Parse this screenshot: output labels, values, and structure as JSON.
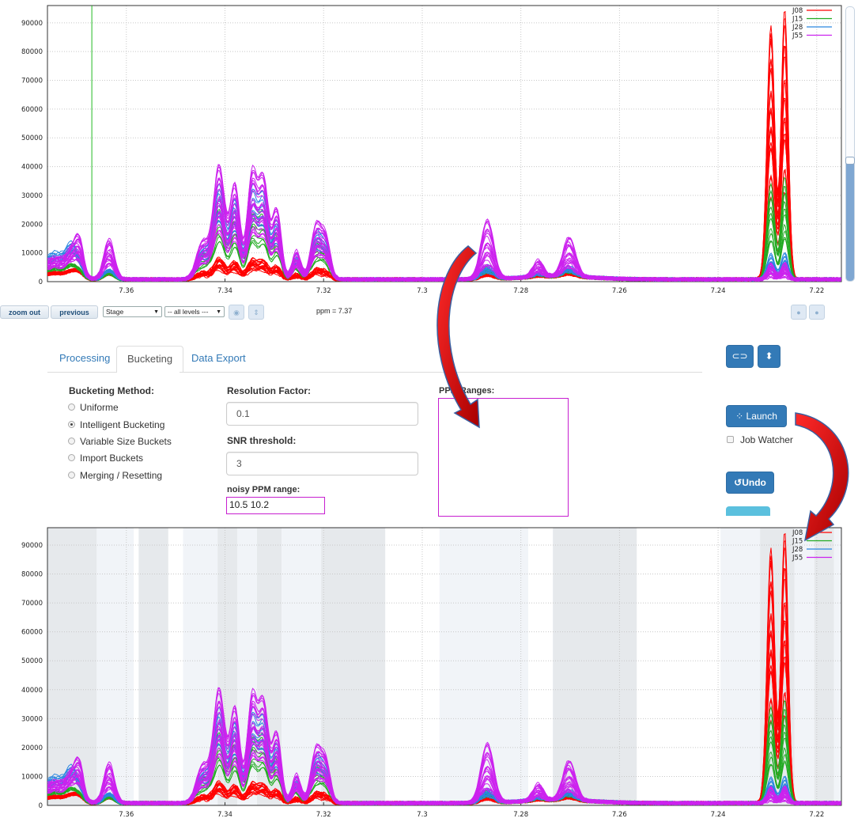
{
  "colors": {
    "J08": "#ff0000",
    "J15": "#22aa22",
    "J28": "#2a86e0",
    "J55": "#cc22ee",
    "cursor": "#22bb22",
    "accent": "#337ab7",
    "arrow": "#cc0000",
    "bucket_dark": "#e6e9ec",
    "bucket_light": "#f1f4f8"
  },
  "legend": [
    "J08",
    "J15",
    "J28",
    "J55"
  ],
  "toolbar": {
    "zoom_out": "zoom out",
    "previous": "previous",
    "stage_select": "Stage",
    "levels_select": "-- all levels ---",
    "ppm_readout": "ppm = 7.37",
    "icons": [
      "gray-round-icon",
      "sort-icon",
      "gray-circle-icon",
      "gray-circle-icon"
    ]
  },
  "tabs": [
    {
      "label": "Processing",
      "active": false
    },
    {
      "label": "Bucketing",
      "active": true
    },
    {
      "label": "Data Export",
      "active": false
    }
  ],
  "form": {
    "method_label": "Bucketing Method:",
    "methods": [
      {
        "label": "Uniforme",
        "selected": false
      },
      {
        "label": "Intelligent Bucketing",
        "selected": true
      },
      {
        "label": "Variable Size Buckets",
        "selected": false
      },
      {
        "label": "Import Buckets",
        "selected": false
      },
      {
        "label": "Merging / Resetting",
        "selected": false
      }
    ],
    "resolution_label": "Resolution Factor:",
    "resolution_value": "0.1",
    "snr_label": "SNR threshold:",
    "snr_value": "3",
    "noisy_label": "noisy PPM range:",
    "noisy_value": "10.5 10.2",
    "ppm_ranges_label": "PPM Ranges:"
  },
  "actions": {
    "launch": "Launch",
    "job_watcher": "Job Watcher",
    "undo": "Undo",
    "top_icons": [
      "link-icon",
      "sort-icon"
    ]
  },
  "chart_data": [
    {
      "type": "line",
      "title": "",
      "xlabel": "",
      "ylabel": "",
      "xlim": [
        7.376,
        7.215
      ],
      "ylim": [
        0,
        96000
      ],
      "x_ticks": [
        7.36,
        7.34,
        7.32,
        7.3,
        7.28,
        7.26,
        7.24,
        7.22
      ],
      "y_ticks": [
        0,
        10000,
        20000,
        30000,
        40000,
        50000,
        60000,
        70000,
        80000,
        90000
      ],
      "grid": true,
      "legend_position": "top-right",
      "cursor_ppm": 7.367,
      "series_summary": [
        {
          "name": "J08",
          "peak_ppm": [
            7.2293,
            7.2265
          ],
          "peak_max": 96000
        },
        {
          "name": "J15",
          "peak_ppm": [
            7.2293,
            7.2265
          ],
          "peak_max": 37000
        },
        {
          "name": "J28",
          "peak_ppm": [
            7.342,
            7.333,
            7.321
          ],
          "peak_max": 40000
        },
        {
          "name": "J55",
          "peak_ppm": [
            7.341,
            7.333,
            7.287,
            7.27
          ],
          "peak_max": 40000
        }
      ]
    },
    {
      "type": "line",
      "title": "",
      "xlabel": "",
      "ylabel": "",
      "xlim": [
        7.376,
        7.215
      ],
      "ylim": [
        0,
        96000
      ],
      "x_ticks": [
        7.36,
        7.34,
        7.32,
        7.3,
        7.28,
        7.26,
        7.24,
        7.22
      ],
      "y_ticks": [
        0,
        10000,
        20000,
        30000,
        40000,
        50000,
        60000,
        70000,
        80000,
        90000
      ],
      "grid": true,
      "legend_position": "top-right",
      "buckets_ppm": [
        [
          7.376,
          7.366,
          "dark"
        ],
        [
          7.366,
          7.3585,
          "light"
        ],
        [
          7.3575,
          7.3515,
          "dark"
        ],
        [
          7.3485,
          7.3415,
          "light"
        ],
        [
          7.3415,
          7.3375,
          "dark"
        ],
        [
          7.3375,
          7.3335,
          "light"
        ],
        [
          7.3335,
          7.3285,
          "dark"
        ],
        [
          7.3285,
          7.3205,
          "light"
        ],
        [
          7.3205,
          7.3075,
          "dark"
        ],
        [
          7.2965,
          7.2785,
          "light"
        ],
        [
          7.2735,
          7.2565,
          "dark"
        ],
        [
          7.2395,
          7.2315,
          "light"
        ],
        [
          7.2315,
          7.2245,
          "dark"
        ],
        [
          7.2245,
          7.2205,
          "light"
        ],
        [
          7.2205,
          7.2165,
          "dark"
        ],
        [
          7.2165,
          7.215,
          "light"
        ]
      ]
    }
  ]
}
